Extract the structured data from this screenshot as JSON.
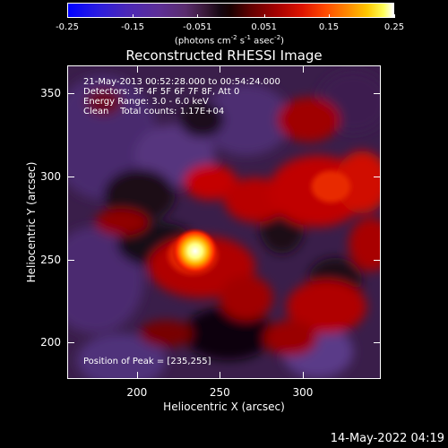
{
  "colorbar": {
    "ticks": [
      "-0.25",
      "-0.15",
      "-0.051",
      "0.051",
      "0.15",
      "0.25"
    ],
    "tick_values": [
      -0.25,
      -0.15,
      -0.051,
      0.051,
      0.15,
      0.25
    ],
    "range": [
      -0.25,
      0.25
    ],
    "units_prefix": "(photons cm",
    "units_sup1": "-2",
    "units_mid1": " s",
    "units_sup2": "-1",
    "units_mid2": " asec",
    "units_sup3": "-2",
    "units_suffix": ")"
  },
  "title": "Reconstructed RHESSI Image",
  "info": {
    "time": "21-May-2013 00:52:28.000 to 00:54:24.000",
    "detectors": "Detectors: 3F 4F 5F 6F 7F 8F, Att 0",
    "energy": "Energy Range: 3.0 - 6.0 keV",
    "clean": "Clean    Total counts: 1.17E+04"
  },
  "peak": "Position of Peak = [235,255]",
  "peak_position": [
    235,
    255
  ],
  "axes": {
    "xlabel": "Heliocentric X (arcsec)",
    "ylabel": "Heliocentric Y (arcsec)",
    "xlim": [
      158,
      347
    ],
    "ylim": [
      178,
      367
    ],
    "xticks": [
      "200",
      "250",
      "300"
    ],
    "xtick_values": [
      200,
      250,
      300
    ],
    "yticks": [
      "200",
      "250",
      "300",
      "350"
    ],
    "ytick_values": [
      200,
      250,
      300,
      350
    ]
  },
  "timestamp": "14-May-2022 04:19"
}
